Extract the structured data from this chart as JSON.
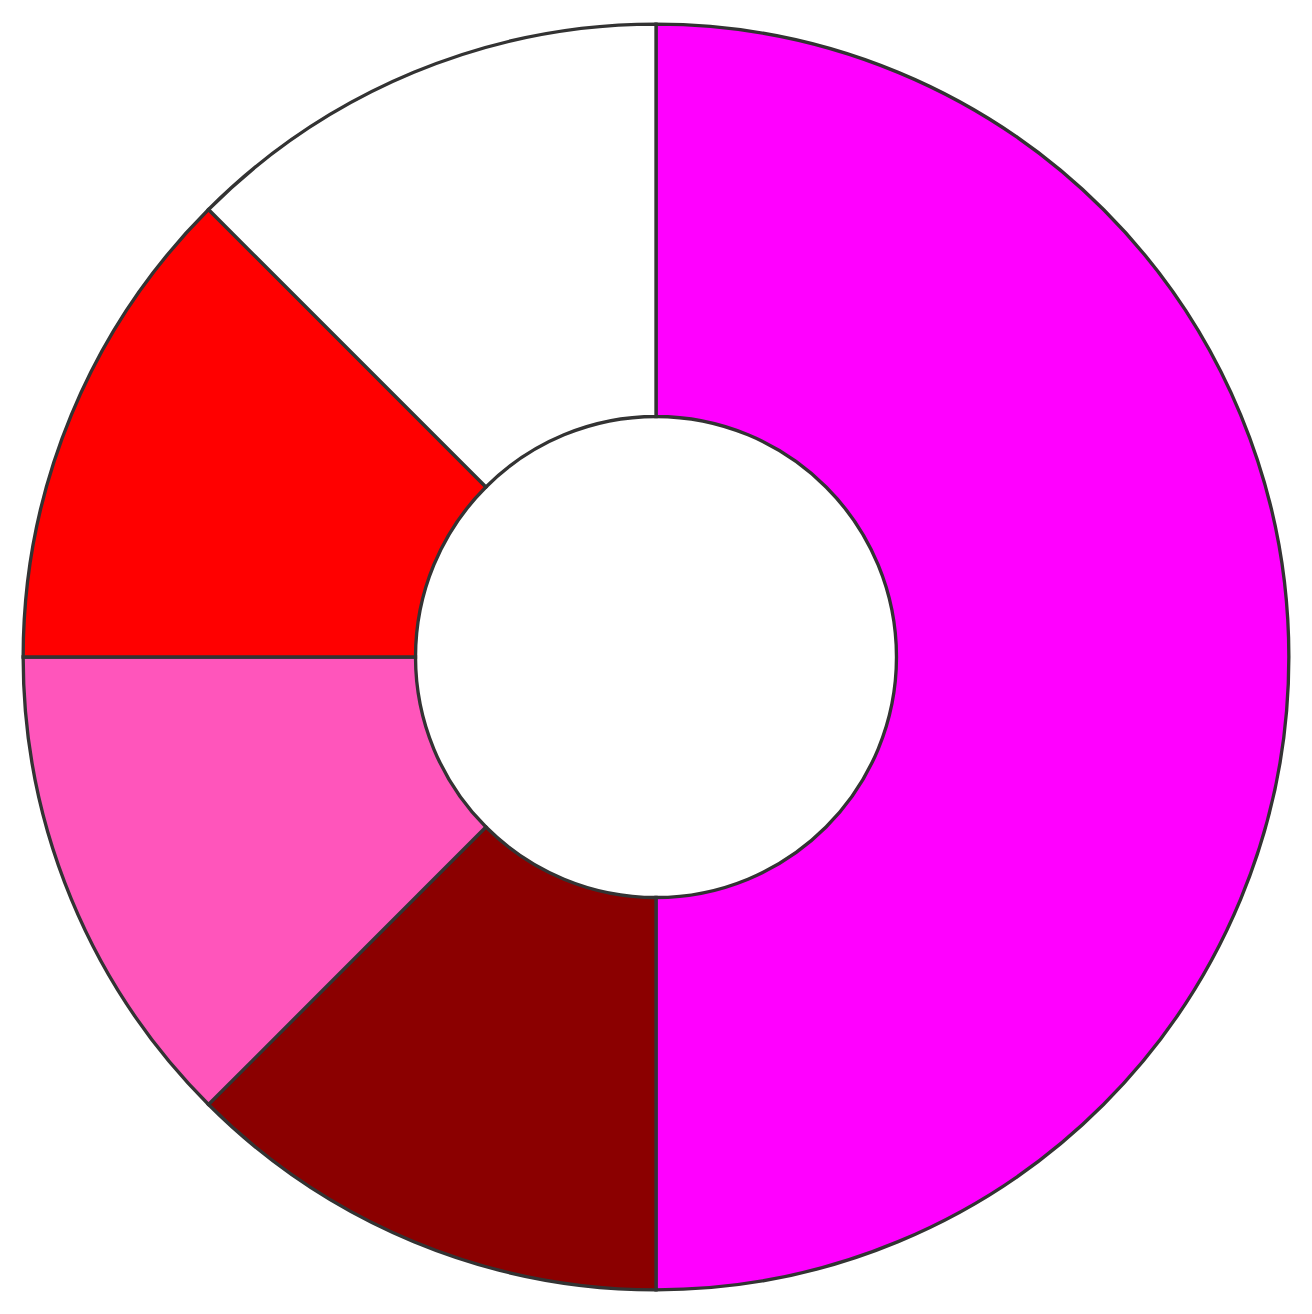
{
  "chart_data": {
    "type": "donut",
    "categories": [
      null,
      null,
      null,
      null,
      null
    ],
    "values": [
      50,
      12.5,
      12.5,
      12.5,
      12.5
    ],
    "colors": [
      "#ff00ff",
      "#8b0000",
      "#ff55bb",
      "#ff0000",
      "#ffffff"
    ]
  }
}
